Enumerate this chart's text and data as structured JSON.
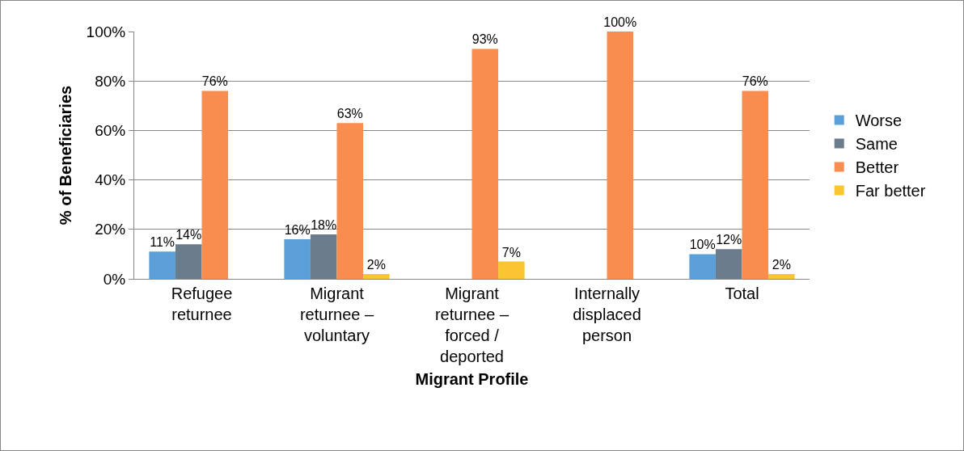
{
  "chart_data": {
    "type": "bar",
    "xlabel": "Migrant Profile",
    "ylabel": "% of Beneficiaries",
    "categories": [
      "Refugee returnee",
      "Migrant returnee – voluntary",
      "Migrant returnee – forced / deported",
      "Internally displaced person",
      "Total"
    ],
    "series": [
      {
        "name": "Worse",
        "color": "#5a9fd8",
        "values": [
          11,
          16,
          null,
          null,
          10
        ],
        "value_labels": [
          "11%",
          "16%",
          null,
          null,
          "10%"
        ]
      },
      {
        "name": "Same",
        "color": "#6b7d8c",
        "values": [
          14,
          18,
          null,
          null,
          12
        ],
        "value_labels": [
          "14%",
          "18%",
          null,
          null,
          "12%"
        ]
      },
      {
        "name": "Better",
        "color": "#f98d4f",
        "values": [
          76,
          63,
          93,
          100,
          76
        ],
        "value_labels": [
          "76%",
          "63%",
          "93%",
          "100%",
          "76%"
        ]
      },
      {
        "name": "Far better",
        "color": "#f9c531",
        "values": [
          null,
          2,
          7,
          null,
          2
        ],
        "value_labels": [
          null,
          "2%",
          "7%",
          null,
          "2%"
        ]
      }
    ],
    "ylim": [
      0,
      100
    ],
    "yticks": [
      {
        "value": 0,
        "label": "0%"
      },
      {
        "value": 20,
        "label": "20%"
      },
      {
        "value": 40,
        "label": "40%"
      },
      {
        "value": 60,
        "label": "60%"
      },
      {
        "value": 80,
        "label": "80%"
      },
      {
        "value": 100,
        "label": "100%"
      }
    ],
    "grid": "y",
    "legend": "right"
  }
}
